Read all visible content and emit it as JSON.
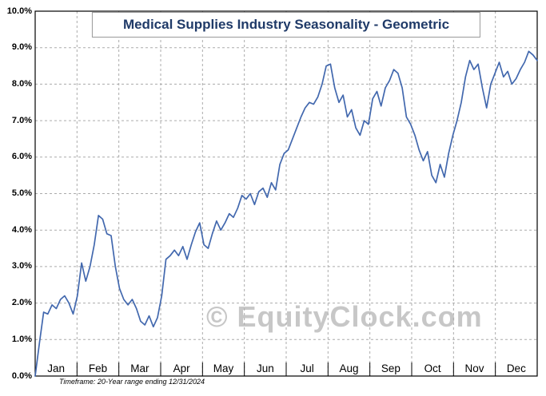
{
  "watermark": "© EquityClock.com",
  "footnote": "Timeframe: 20-Year range ending 12/31/2024",
  "colors": {
    "line": "#4268ae",
    "title": "#1f3a68",
    "grid": "#ababab",
    "border": "#000000",
    "watermark": "#c7c7c7"
  },
  "chart_data": {
    "type": "line",
    "title": "Medical Supplies Industry Seasonality - Geometric",
    "xlabel": "",
    "ylabel": "",
    "x_tick_labels": [
      "Jan",
      "Feb",
      "Mar",
      "Apr",
      "May",
      "Jun",
      "Jul",
      "Aug",
      "Sep",
      "Oct",
      "Nov",
      "Dec"
    ],
    "y_tick_labels": [
      "0.0%",
      "1.0%",
      "2.0%",
      "3.0%",
      "4.0%",
      "5.0%",
      "6.0%",
      "7.0%",
      "8.0%",
      "9.0%",
      "10.0%"
    ],
    "ylim": [
      0,
      10
    ],
    "y_step": 1,
    "grid": true,
    "legend": "none",
    "points_per_month": 10,
    "values_unit": "percent",
    "values": [
      0.0,
      0.9,
      1.75,
      1.7,
      1.95,
      1.85,
      2.1,
      2.2,
      2.0,
      1.7,
      2.2,
      3.1,
      2.6,
      3.0,
      3.6,
      4.4,
      4.3,
      3.9,
      3.85,
      3.0,
      2.4,
      2.1,
      1.95,
      2.1,
      1.85,
      1.5,
      1.4,
      1.65,
      1.35,
      1.6,
      2.2,
      3.2,
      3.3,
      3.45,
      3.3,
      3.55,
      3.2,
      3.6,
      3.95,
      4.2,
      3.6,
      3.5,
      3.9,
      4.25,
      4.0,
      4.2,
      4.45,
      4.35,
      4.6,
      4.95,
      4.85,
      5.0,
      4.7,
      5.05,
      5.15,
      4.9,
      5.3,
      5.1,
      5.8,
      6.1,
      6.2,
      6.5,
      6.8,
      7.1,
      7.35,
      7.5,
      7.45,
      7.65,
      8.0,
      8.5,
      8.55,
      7.9,
      7.5,
      7.7,
      7.1,
      7.3,
      6.8,
      6.6,
      7.0,
      6.9,
      7.6,
      7.8,
      7.4,
      7.9,
      8.1,
      8.4,
      8.3,
      7.9,
      7.1,
      6.9,
      6.6,
      6.2,
      5.9,
      6.15,
      5.5,
      5.3,
      5.8,
      5.45,
      6.1,
      6.6,
      7.0,
      7.5,
      8.2,
      8.65,
      8.4,
      8.55,
      7.9,
      7.35,
      8.0,
      8.3,
      8.6,
      8.2,
      8.35,
      8.0,
      8.15,
      8.4,
      8.6,
      8.9,
      8.8,
      8.65
    ]
  }
}
